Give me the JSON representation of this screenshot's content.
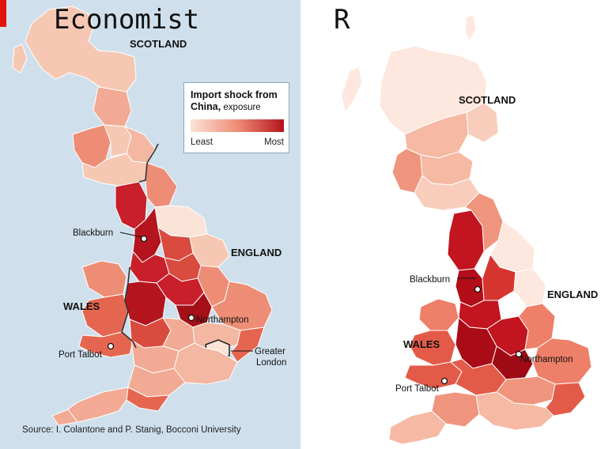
{
  "left_panel": {
    "title": "Economist",
    "country_labels": {
      "scotland": "SCOTLAND",
      "england": "ENGLAND",
      "wales": "WALES"
    },
    "place_labels": {
      "blackburn": "Blackburn",
      "northampton": "Northampton",
      "port_talbot": "Port Talbot",
      "greater_london_1": "Greater",
      "greater_london_2": "London"
    },
    "legend": {
      "title_line1": "Import shock from",
      "title_line2_bold": "China,",
      "title_line2_rest": " exposure",
      "least": "Least",
      "most": "Most",
      "color_low": "#fbe3d8",
      "color_high": "#b4141e"
    },
    "source": "Source: I. Colantone and P. Stanig, Bocconi University",
    "background_color": "#cfe0ec"
  },
  "right_panel": {
    "title": "R",
    "country_labels": {
      "scotland": "SCOTLAND",
      "england": "ENGLAND",
      "wales": "WALES"
    },
    "place_labels": {
      "blackburn": "Blackburn",
      "northampton": "Northampton",
      "port_talbot": "Port Talbot"
    }
  }
}
